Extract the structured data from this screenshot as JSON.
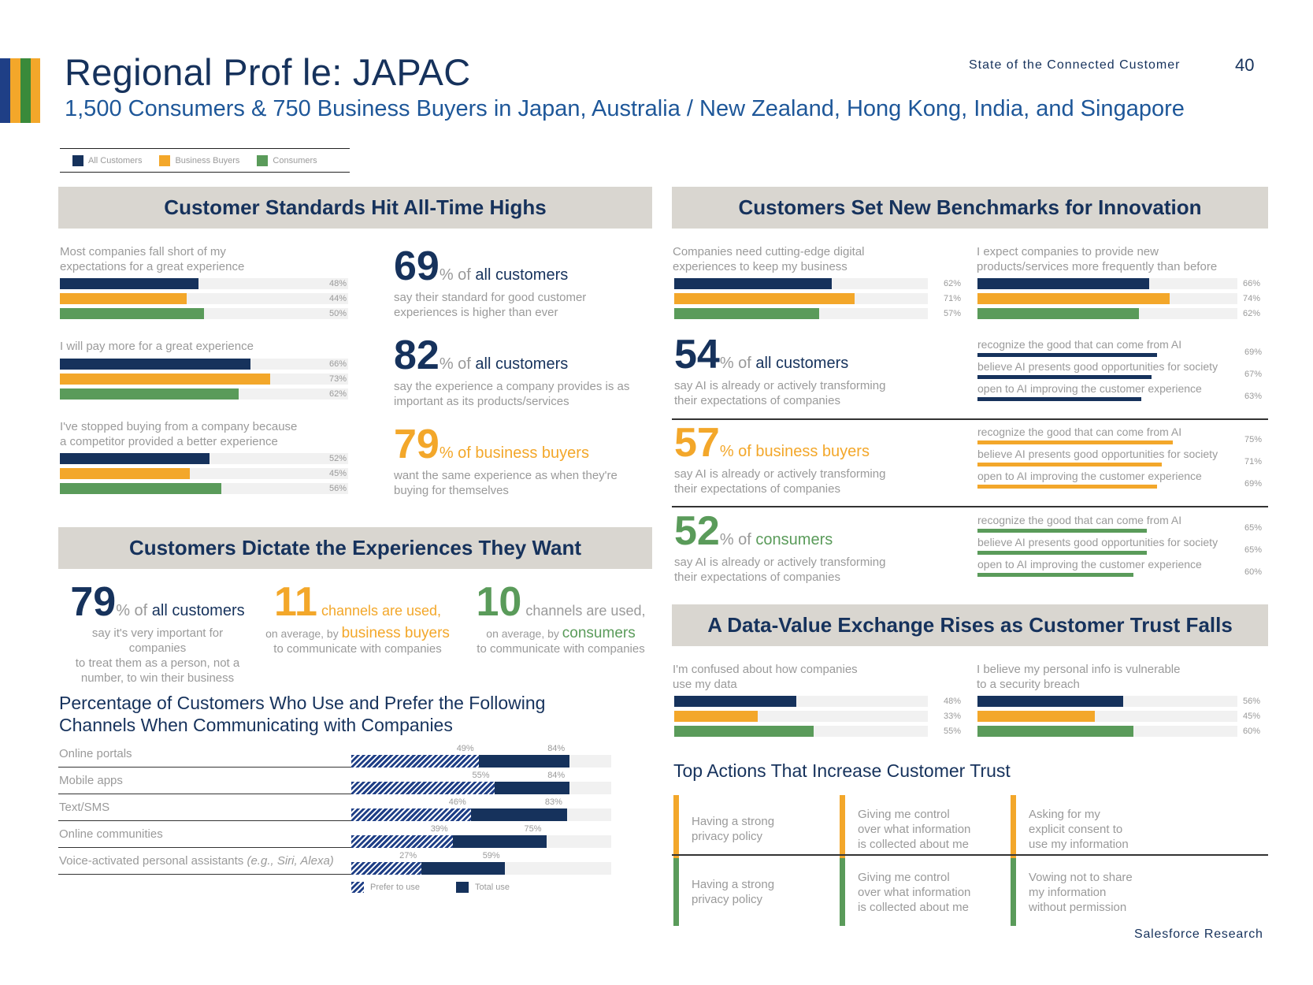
{
  "header": {
    "title": "Regional Prof le: JAPAC",
    "subtitle": "1,500 Consumers & 750 Business Buyers in Japan, Australia / New Zealand, Hong Kong, India, and Singapore",
    "running_head": "State of the Connected Customer",
    "page_number": "40"
  },
  "colors": {
    "all_customers": "#16325c",
    "business_buyers": "#f3a72a",
    "consumers": "#5a9b5a",
    "banner_bg": "#d9d6d0",
    "stripe_green": "#3a8a3a"
  },
  "legend": [
    {
      "label": "All Customers",
      "color": "#16325c"
    },
    {
      "label": "Business Buyers",
      "color": "#f3a72a"
    },
    {
      "label": "Consumers",
      "color": "#5a9b5a"
    }
  ],
  "standards": {
    "title": "Customer Standards Hit All-Time Highs",
    "questions": [
      {
        "text_1": "Most companies fall short of my",
        "text_2": "expectations for a great experience",
        "values": [
          48,
          44,
          50
        ],
        "labels": [
          "48%",
          "44%",
          "50%"
        ]
      },
      {
        "text_1": "I will pay more for a great experience",
        "text_2": "",
        "values": [
          66,
          73,
          62
        ],
        "labels": [
          "66%",
          "73%",
          "62%"
        ]
      },
      {
        "text_1": "I've stopped buying from a company because",
        "text_2": "a competitor provided a better experience",
        "values": [
          52,
          45,
          56
        ],
        "labels": [
          "52%",
          "45%",
          "56%"
        ]
      }
    ],
    "stats": [
      {
        "number": "69",
        "of": "% of ",
        "who": "all customers",
        "desc_1": "say their standard for good customer",
        "desc_2": "experiences is higher than ever"
      },
      {
        "number": "82",
        "of": "% of ",
        "who": "all customers",
        "desc_1": "say the experience a company provides is as",
        "desc_2": "important as its products/services"
      },
      {
        "number": "79",
        "of": "% of ",
        "who": "business buyers",
        "desc_1": "want the same experience as when they're",
        "desc_2": "buying for themselves"
      }
    ]
  },
  "innovation": {
    "title": "Customers Set New Benchmarks for Innovation",
    "questions": [
      {
        "text_1": "Companies need cutting-edge digital",
        "text_2": "experiences to keep my business",
        "values": [
          62,
          71,
          57
        ],
        "labels": [
          "62%",
          "71%",
          "57%"
        ]
      },
      {
        "text_1": "I expect companies to provide new",
        "text_2": "products/services more frequently than before",
        "values": [
          66,
          74,
          62
        ],
        "labels": [
          "66%",
          "74%",
          "62%"
        ]
      }
    ],
    "ai_stats": [
      {
        "number": "54",
        "of": "% of ",
        "who": "all customers",
        "desc_1": "say AI is already or actively transforming",
        "desc_2": "their expectations of companies",
        "items": [
          {
            "label": "recognize the good that can come from AI",
            "value": 69,
            "pct": "69%"
          },
          {
            "label": "believe AI presents good opportunities for society",
            "value": 67,
            "pct": "67%"
          },
          {
            "label": "open to AI improving the customer experience",
            "value": 63,
            "pct": "63%"
          }
        ]
      },
      {
        "number": "57",
        "of": "% of ",
        "who": "business buyers",
        "desc_1": "say AI is already or actively transforming",
        "desc_2": "their expectations of companies",
        "items": [
          {
            "label": "recognize the good that can come from AI",
            "value": 75,
            "pct": "75%"
          },
          {
            "label": "believe AI presents good opportunities for society",
            "value": 71,
            "pct": "71%"
          },
          {
            "label": "open to AI improving the customer experience",
            "value": 69,
            "pct": "69%"
          }
        ]
      },
      {
        "number": "52",
        "of": "% of ",
        "who": "consumers",
        "desc_1": "say AI is already or actively transforming",
        "desc_2": "their expectations of companies",
        "items": [
          {
            "label": "recognize the good that can come from AI",
            "value": 65,
            "pct": "65%"
          },
          {
            "label": "believe AI presents good opportunities for society",
            "value": 65,
            "pct": "65%"
          },
          {
            "label": "open to AI improving the customer experience",
            "value": 60,
            "pct": "60%"
          }
        ]
      }
    ]
  },
  "experiences": {
    "title": "Customers Dictate the Experiences They Want",
    "stats": [
      {
        "number": "79",
        "of": "% of ",
        "who": "all customers",
        "desc_1": "say it's very important for companies",
        "desc_2": "to treat them as a person, not a",
        "desc_3": "number, to win their business"
      },
      {
        "number": "11",
        "suffix": " channels are used,",
        "desc_pre": "on average, by ",
        "who": "business buyers",
        "desc_2": "to communicate with companies"
      },
      {
        "number": "10",
        "suffix": " channels are used,",
        "desc_pre": "on average, by ",
        "who": "consumers",
        "desc_2": "to communicate with companies"
      }
    ]
  },
  "channels": {
    "title_1": "Percentage of Customers Who Use and Prefer the Following",
    "title_2": "Channels When Communicating with Companies",
    "rows": [
      {
        "label": "Online portals",
        "label_note": "",
        "prefer": 49,
        "total": 84,
        "prefer_label": "49%",
        "total_label": "84%"
      },
      {
        "label": "Mobile apps",
        "label_note": "",
        "prefer": 55,
        "total": 84,
        "prefer_label": "55%",
        "total_label": "84%"
      },
      {
        "label": "Text/SMS",
        "label_note": "",
        "prefer": 46,
        "total": 83,
        "prefer_label": "46%",
        "total_label": "83%"
      },
      {
        "label": "Online communities",
        "label_note": "",
        "prefer": 39,
        "total": 75,
        "prefer_label": "39%",
        "total_label": "75%"
      },
      {
        "label": "Voice-activated personal assistants ",
        "label_note": "(e.g., Siri, Alexa)",
        "prefer": 27,
        "total": 59,
        "prefer_label": "27%",
        "total_label": "59%"
      }
    ],
    "legend_prefer": "Prefer to use",
    "legend_total": "Total use"
  },
  "data_value": {
    "title": "A Data-Value Exchange Rises as Customer Trust Falls",
    "questions": [
      {
        "text_1": "I'm confused about how companies",
        "text_2": "use my data",
        "values": [
          48,
          33,
          55
        ],
        "labels": [
          "48%",
          "33%",
          "55%"
        ]
      },
      {
        "text_1": "I believe my personal info is vulnerable",
        "text_2": "to a security breach",
        "values": [
          56,
          45,
          60
        ],
        "labels": [
          "56%",
          "45%",
          "60%"
        ]
      }
    ]
  },
  "trust": {
    "title": "Top Actions That Increase Customer Trust",
    "business": [
      {
        "line_1": "Having a strong",
        "line_2": "privacy policy",
        "line_3": ""
      },
      {
        "line_1": "Giving me control",
        "line_2": "over what information",
        "line_3": "is collected about me"
      },
      {
        "line_1": "Asking for my",
        "line_2": "explicit consent to",
        "line_3": "use my information"
      }
    ],
    "consumers": [
      {
        "line_1": "Having a strong",
        "line_2": "privacy policy",
        "line_3": ""
      },
      {
        "line_1": "Giving me control",
        "line_2": "over what information",
        "line_3": "is collected about me"
      },
      {
        "line_1": "Vowing not to share",
        "line_2": "my information",
        "line_3": "without permission"
      }
    ]
  },
  "footer": "Salesforce Research"
}
